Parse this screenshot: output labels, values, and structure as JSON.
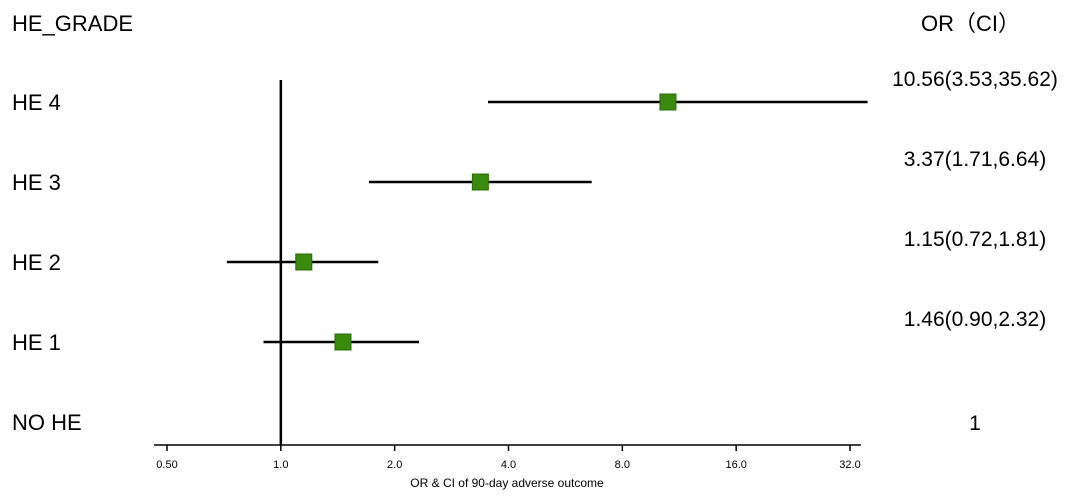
{
  "chart_data": {
    "type": "forest",
    "row_header": "HE_GRADE",
    "or_header": "OR（CI）",
    "xlabel": "OR & CI of 90-day adverse outcome",
    "x_scale": "log2",
    "xlim": [
      0.5,
      32
    ],
    "x_ticks": [
      0.5,
      1,
      2,
      4,
      8,
      16,
      32
    ],
    "x_tick_labels": [
      "0.50",
      "1.0",
      "2.0",
      "4.0",
      "8.0",
      "16.0",
      "32.0"
    ],
    "reference_line": 1,
    "marker_color": "#3a8a0e",
    "rows": [
      {
        "label": "HE 4",
        "or": 10.56,
        "lower": 3.53,
        "upper": 35.62,
        "or_text": "10.56(3.53,35.62)"
      },
      {
        "label": "HE 3",
        "or": 3.37,
        "lower": 1.71,
        "upper": 6.64,
        "or_text": "3.37(1.71,6.64)"
      },
      {
        "label": "HE 2",
        "or": 1.15,
        "lower": 0.72,
        "upper": 1.81,
        "or_text": "1.15(0.72,1.81)"
      },
      {
        "label": "HE 1",
        "or": 1.46,
        "lower": 0.9,
        "upper": 2.32,
        "or_text": "1.46(0.90,2.32)"
      },
      {
        "label": "NO HE",
        "or": null,
        "lower": null,
        "upper": null,
        "or_text": "1"
      }
    ]
  }
}
